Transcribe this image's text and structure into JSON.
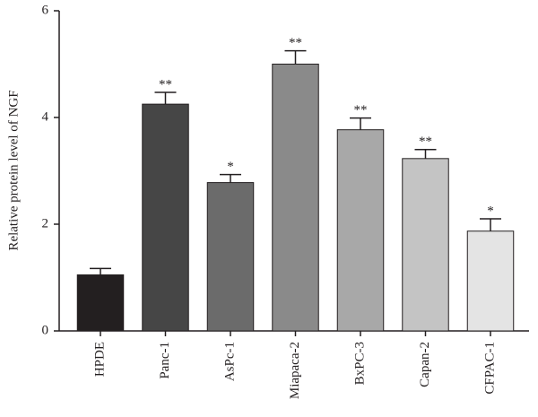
{
  "chart_data": {
    "type": "bar",
    "y_label": "Relative protein level of NGF",
    "categories": [
      "HPDE",
      "Panc-1",
      "AsPc-1",
      "Miapaca-2",
      "BxPC-3",
      "Capan-2",
      "CFPAC-1"
    ],
    "values": [
      1.05,
      4.25,
      2.78,
      5.0,
      3.77,
      3.23,
      1.87
    ],
    "errors": [
      0.12,
      0.22,
      0.15,
      0.25,
      0.22,
      0.17,
      0.23
    ],
    "annotations": [
      null,
      "**",
      "*",
      "**",
      "**",
      "**",
      "*"
    ],
    "colors": [
      "#231f20",
      "#464646",
      "#6b6b6b",
      "#8a8a8a",
      "#a8a8a8",
      "#c4c4c4",
      "#e4e4e4"
    ],
    "ylim": [
      0,
      6
    ],
    "yticks": [
      0,
      2,
      4,
      6
    ],
    "grid": false
  }
}
